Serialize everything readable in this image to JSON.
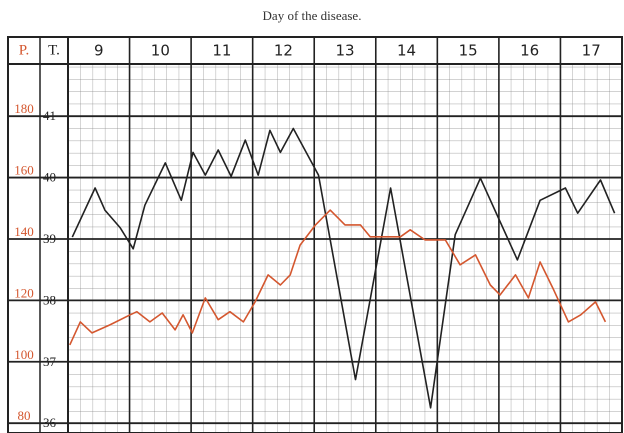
{
  "chart_data": {
    "type": "line",
    "title": "Day of the disease.",
    "y_label": "T.",
    "y2_label": "P.",
    "xlim": [
      9,
      18
    ],
    "xticks": [
      {
        "value": 9.5,
        "label": "9"
      },
      {
        "value": 10.5,
        "label": "10"
      },
      {
        "value": 11.5,
        "label": "11"
      },
      {
        "value": 12.5,
        "label": "12"
      },
      {
        "value": 13.5,
        "label": "13"
      },
      {
        "value": 14.5,
        "label": "14"
      },
      {
        "value": 15.5,
        "label": "15"
      },
      {
        "value": 16.5,
        "label": "16"
      },
      {
        "value": 17.5,
        "label": "17"
      }
    ],
    "ylim": [
      35.84,
      41.85
    ],
    "yticks": [
      36,
      37,
      38,
      39,
      40,
      41
    ],
    "y2lim": [
      76.8,
      197
    ],
    "y2ticks": [
      80,
      100,
      120,
      140,
      160,
      180
    ],
    "grid": true,
    "series": [
      {
        "color": "#222222",
        "x": [
          9.07,
          9.44,
          9.6,
          9.85,
          10.06,
          10.25,
          10.58,
          10.84,
          11.03,
          11.23,
          11.44,
          11.65,
          11.88,
          12.09,
          12.28,
          12.45,
          12.66,
          13.07,
          13.67,
          14.24,
          14.89,
          15.29,
          15.7,
          16.3,
          16.67,
          17.08,
          17.28,
          17.65,
          17.88
        ],
        "values": [
          39.03,
          39.83,
          39.47,
          39.18,
          38.84,
          39.55,
          40.24,
          39.63,
          40.41,
          40.04,
          40.45,
          40.02,
          40.61,
          40.04,
          40.77,
          40.41,
          40.8,
          40.04,
          36.71,
          39.83,
          36.25,
          39.07,
          39.99,
          38.66,
          39.63,
          39.83,
          39.42,
          39.96,
          39.42
        ]
      },
      {
        "color": "#d4572f",
        "axis": "y2",
        "x": [
          9.03,
          9.2,
          9.39,
          9.68,
          10.01,
          10.12,
          10.33,
          10.53,
          10.74,
          10.87,
          11.02,
          11.23,
          11.44,
          11.63,
          11.85,
          12.04,
          12.25,
          12.45,
          12.61,
          12.77,
          13.02,
          13.26,
          13.5,
          13.75,
          13.91,
          14.4,
          14.56,
          14.8,
          15.13,
          15.37,
          15.62,
          15.86,
          16.02,
          16.27,
          16.48,
          16.67,
          16.89,
          17.13,
          17.33,
          17.57,
          17.73
        ],
        "values": [
          105.5,
          113.0,
          109.4,
          112.0,
          115.3,
          116.3,
          113.0,
          115.9,
          110.4,
          115.3,
          109.4,
          120.8,
          113.7,
          116.3,
          113.0,
          119.5,
          128.3,
          125.0,
          128.3,
          138.0,
          144.6,
          149.4,
          144.6,
          144.6,
          140.7,
          140.7,
          143.0,
          139.7,
          139.7,
          131.6,
          134.8,
          125.0,
          121.8,
          128.3,
          120.8,
          132.5,
          123.4,
          113.0,
          115.3,
          119.5,
          113.0
        ]
      }
    ]
  }
}
